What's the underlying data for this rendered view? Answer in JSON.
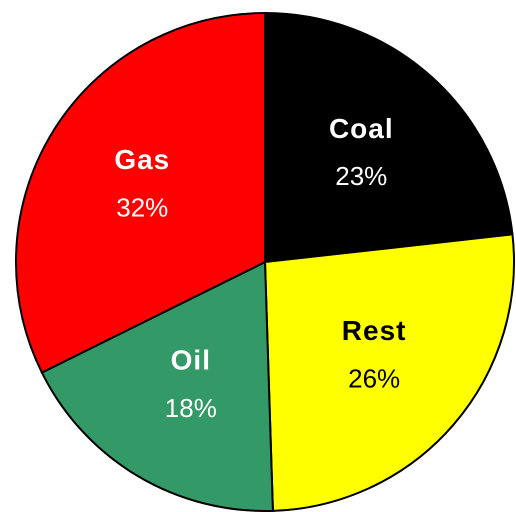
{
  "chart_data": {
    "type": "pie",
    "categories": [
      "Coal",
      "Rest",
      "Oil",
      "Gas"
    ],
    "values": [
      23,
      26,
      18,
      32
    ],
    "value_labels": [
      "23%",
      "26%",
      "18%",
      "32%"
    ],
    "colors": [
      "#000000",
      "#ffff00",
      "#339966",
      "#ff0000"
    ]
  }
}
